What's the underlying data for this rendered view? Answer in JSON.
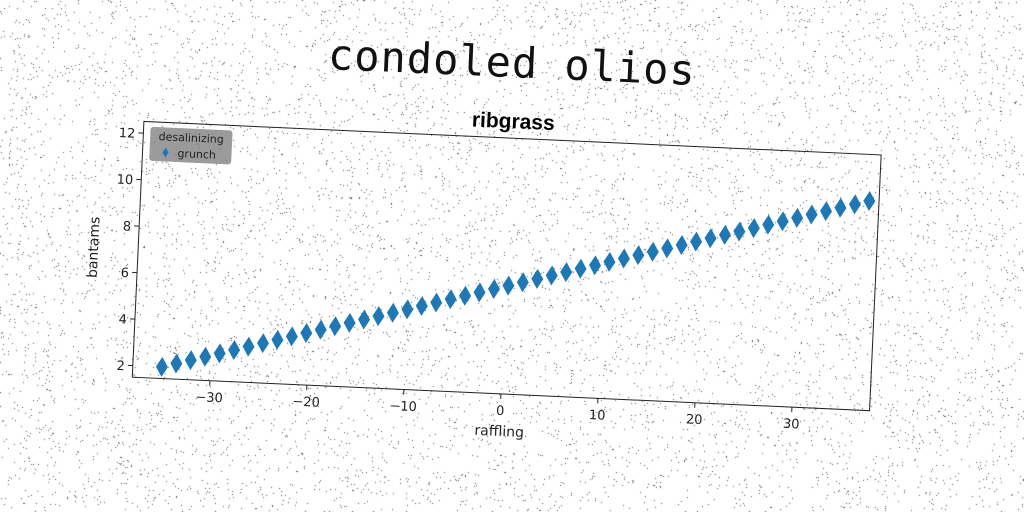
{
  "suptitle": "condoled olios",
  "chart_data": {
    "type": "scatter",
    "title": "ribgrass",
    "xlabel": "raffling",
    "ylabel": "bantams",
    "xlim": [
      -38,
      38
    ],
    "ylim": [
      1.5,
      12.5
    ],
    "xticks": [
      -30,
      -20,
      -10,
      0,
      10,
      20,
      30
    ],
    "xtick_labels": [
      "−30",
      "−20",
      "−10",
      "0",
      "10",
      "20",
      "30"
    ],
    "yticks": [
      2,
      4,
      6,
      8,
      10,
      12
    ],
    "ytick_labels": [
      "2",
      "4",
      "6",
      "8",
      "10",
      "12"
    ],
    "grid": false,
    "legend": {
      "title": "desalinizing",
      "placement": "top-left"
    },
    "series": [
      {
        "name": "grunch",
        "marker": "diamond",
        "color": "#1f77b4",
        "x_start": -35,
        "x_end": 37,
        "y_start": 2.0,
        "y_end": 10.5,
        "n_points": 50
      }
    ]
  }
}
